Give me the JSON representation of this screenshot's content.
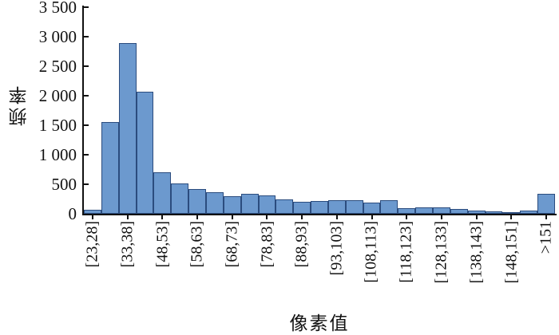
{
  "chart_data": {
    "type": "bar",
    "title": "",
    "xlabel": "像素值",
    "ylabel": "频率",
    "ylim": [
      0,
      3500
    ],
    "grid": false,
    "legend": "none",
    "yticks": [
      {
        "value": 0,
        "label": "0"
      },
      {
        "value": 500,
        "label": "500"
      },
      {
        "value": 1000,
        "label": "1 000"
      },
      {
        "value": 1500,
        "label": "1 500"
      },
      {
        "value": 2000,
        "label": "2 000"
      },
      {
        "value": 2500,
        "label": "2 500"
      },
      {
        "value": 3000,
        "label": "3 000"
      },
      {
        "value": 3500,
        "label": "3 500"
      }
    ],
    "bars": [
      {
        "label": "[23,28]",
        "value": 80
      },
      {
        "label": "",
        "value": 1570
      },
      {
        "label": "[33,38]",
        "value": 2910
      },
      {
        "label": "",
        "value": 2080
      },
      {
        "label": "[48,53]",
        "value": 710
      },
      {
        "label": "",
        "value": 520
      },
      {
        "label": "[58,63]",
        "value": 430
      },
      {
        "label": "",
        "value": 370
      },
      {
        "label": "[68,73]",
        "value": 300
      },
      {
        "label": "",
        "value": 345
      },
      {
        "label": "[78,83]",
        "value": 315
      },
      {
        "label": "",
        "value": 245
      },
      {
        "label": "[88,93]",
        "value": 205
      },
      {
        "label": "",
        "value": 220
      },
      {
        "label": "[93,103]",
        "value": 235
      },
      {
        "label": "",
        "value": 240
      },
      {
        "label": "[108,113]",
        "value": 200
      },
      {
        "label": "",
        "value": 240
      },
      {
        "label": "[118,123]",
        "value": 105
      },
      {
        "label": "",
        "value": 120
      },
      {
        "label": "[128,133]",
        "value": 110
      },
      {
        "label": "",
        "value": 90
      },
      {
        "label": "[138,143]",
        "value": 55
      },
      {
        "label": "",
        "value": 45
      },
      {
        "label": "[148,151]",
        "value": 40
      },
      {
        "label": "",
        "value": 65
      },
      {
        "label": ">151",
        "value": 345
      }
    ],
    "colors": {
      "bar_fill": "#6C99CE",
      "bar_border": "#2B4C7E",
      "axis": "#111111"
    }
  }
}
